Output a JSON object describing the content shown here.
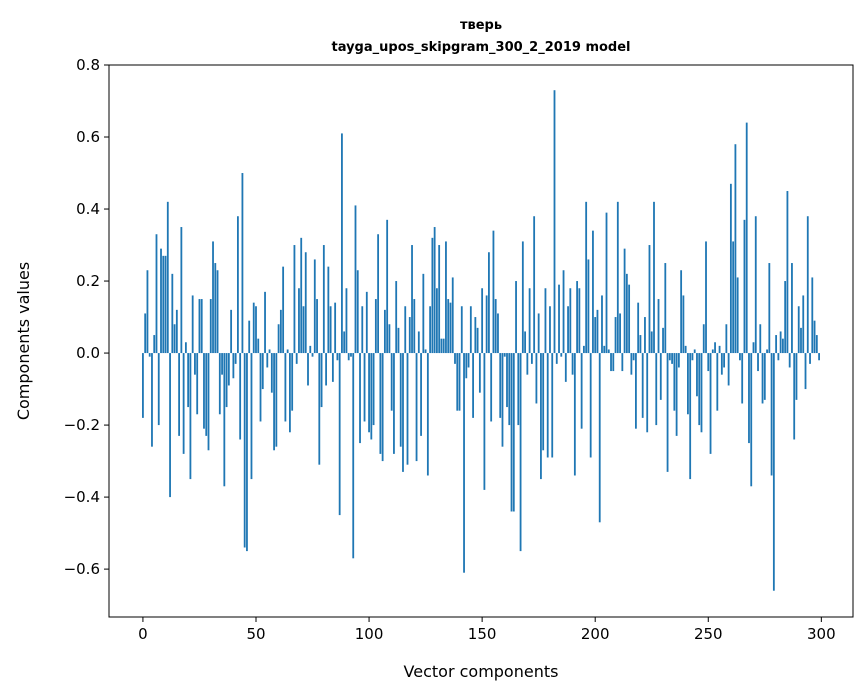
{
  "chart_data": {
    "type": "bar",
    "title": "тверь",
    "subtitle": "tayga_upos_skipgram_300_2_2019 model",
    "xlabel": "Vector components",
    "ylabel": "Components values",
    "xlim": [
      -15,
      314
    ],
    "ylim": [
      -0.733,
      0.8
    ],
    "xticks": [
      0,
      50,
      100,
      150,
      200,
      250,
      300
    ],
    "xtick_labels": [
      "0",
      "50",
      "100",
      "150",
      "200",
      "250",
      "300"
    ],
    "yticks": [
      -0.6,
      -0.4,
      -0.2,
      0.0,
      0.2,
      0.4,
      0.6,
      0.8
    ],
    "ytick_labels": [
      "−0.6",
      "−0.4",
      "−0.2",
      "0.0",
      "0.2",
      "0.4",
      "0.6",
      "0.8"
    ],
    "grid": false,
    "bar_color": "#1f77b4",
    "values": [
      -0.18,
      0.11,
      0.23,
      -0.01,
      -0.26,
      0.05,
      0.33,
      -0.2,
      0.29,
      0.27,
      0.27,
      0.42,
      -0.4,
      0.22,
      0.08,
      0.12,
      -0.23,
      0.35,
      -0.28,
      0.03,
      -0.15,
      -0.35,
      0.16,
      -0.06,
      -0.17,
      0.15,
      0.15,
      -0.21,
      -0.23,
      -0.27,
      0.15,
      0.31,
      0.25,
      0.23,
      -0.17,
      -0.06,
      -0.37,
      -0.15,
      -0.09,
      0.12,
      -0.07,
      -0.03,
      0.38,
      -0.24,
      0.5,
      -0.54,
      -0.55,
      0.09,
      -0.35,
      0.14,
      0.13,
      0.04,
      -0.19,
      -0.1,
      0.17,
      -0.04,
      0.01,
      -0.11,
      -0.27,
      -0.26,
      0.08,
      0.12,
      0.24,
      -0.19,
      0.01,
      -0.22,
      -0.16,
      0.3,
      -0.03,
      0.18,
      0.32,
      0.13,
      0.28,
      -0.09,
      0.02,
      -0.01,
      0.26,
      0.15,
      -0.31,
      -0.15,
      0.3,
      -0.09,
      0.24,
      0.13,
      -0.08,
      0.14,
      -0.02,
      -0.45,
      0.61,
      0.06,
      0.18,
      -0.02,
      -0.01,
      -0.57,
      0.41,
      0.23,
      -0.25,
      0.13,
      -0.19,
      0.17,
      -0.22,
      -0.24,
      -0.2,
      0.15,
      0.33,
      -0.28,
      -0.3,
      0.12,
      0.37,
      0.08,
      -0.16,
      -0.28,
      0.2,
      0.07,
      -0.26,
      -0.33,
      0.13,
      -0.31,
      0.1,
      0.3,
      0.15,
      -0.3,
      0.06,
      -0.23,
      0.22,
      0.01,
      -0.34,
      0.13,
      0.32,
      0.35,
      0.18,
      0.3,
      0.04,
      0.04,
      0.31,
      0.15,
      0.14,
      0.21,
      -0.03,
      -0.16,
      -0.16,
      0.13,
      -0.61,
      -0.07,
      -0.04,
      0.13,
      -0.18,
      0.1,
      0.07,
      -0.11,
      0.18,
      -0.38,
      0.16,
      0.28,
      -0.19,
      0.34,
      0.15,
      0.11,
      -0.18,
      -0.26,
      -0.01,
      -0.15,
      -0.2,
      -0.44,
      -0.44,
      0.2,
      -0.2,
      -0.55,
      0.31,
      0.06,
      -0.06,
      0.18,
      -0.03,
      0.38,
      -0.14,
      0.11,
      -0.35,
      -0.27,
      0.18,
      -0.29,
      0.13,
      -0.29,
      0.73,
      -0.03,
      0.19,
      -0.01,
      0.23,
      -0.08,
      0.13,
      0.18,
      -0.06,
      -0.34,
      0.2,
      0.18,
      -0.21,
      0.02,
      0.42,
      0.26,
      -0.29,
      0.34,
      0.1,
      0.12,
      -0.47,
      0.16,
      0.02,
      0.39,
      0.01,
      -0.05,
      -0.05,
      0.1,
      0.42,
      0.11,
      -0.05,
      0.29,
      0.22,
      0.19,
      -0.06,
      -0.02,
      -0.21,
      0.14,
      0.05,
      -0.18,
      0.1,
      -0.22,
      0.3,
      0.06,
      0.42,
      -0.2,
      0.15,
      -0.13,
      0.07,
      0.25,
      -0.33,
      -0.02,
      -0.03,
      -0.16,
      -0.23,
      -0.04,
      0.23,
      0.16,
      0.02,
      -0.17,
      -0.35,
      -0.02,
      0.01,
      -0.12,
      -0.2,
      -0.22,
      0.08,
      0.31,
      -0.05,
      -0.28,
      0.01,
      0.03,
      -0.16,
      0.02,
      -0.06,
      -0.04,
      0.08,
      -0.09,
      0.47,
      0.31,
      0.58,
      0.21,
      -0.02,
      -0.14,
      0.37,
      0.64,
      -0.25,
      -0.37,
      0.03,
      0.38,
      -0.05,
      0.08,
      -0.14,
      -0.13,
      0.01,
      0.25,
      -0.34,
      -0.66,
      0.05,
      -0.02,
      0.06,
      0.04,
      0.2,
      0.45,
      -0.04,
      0.25,
      -0.24,
      -0.13,
      0.13,
      0.07,
      0.16,
      -0.1,
      0.38,
      -0.03,
      0.21,
      0.09,
      0.05,
      -0.02
    ]
  }
}
